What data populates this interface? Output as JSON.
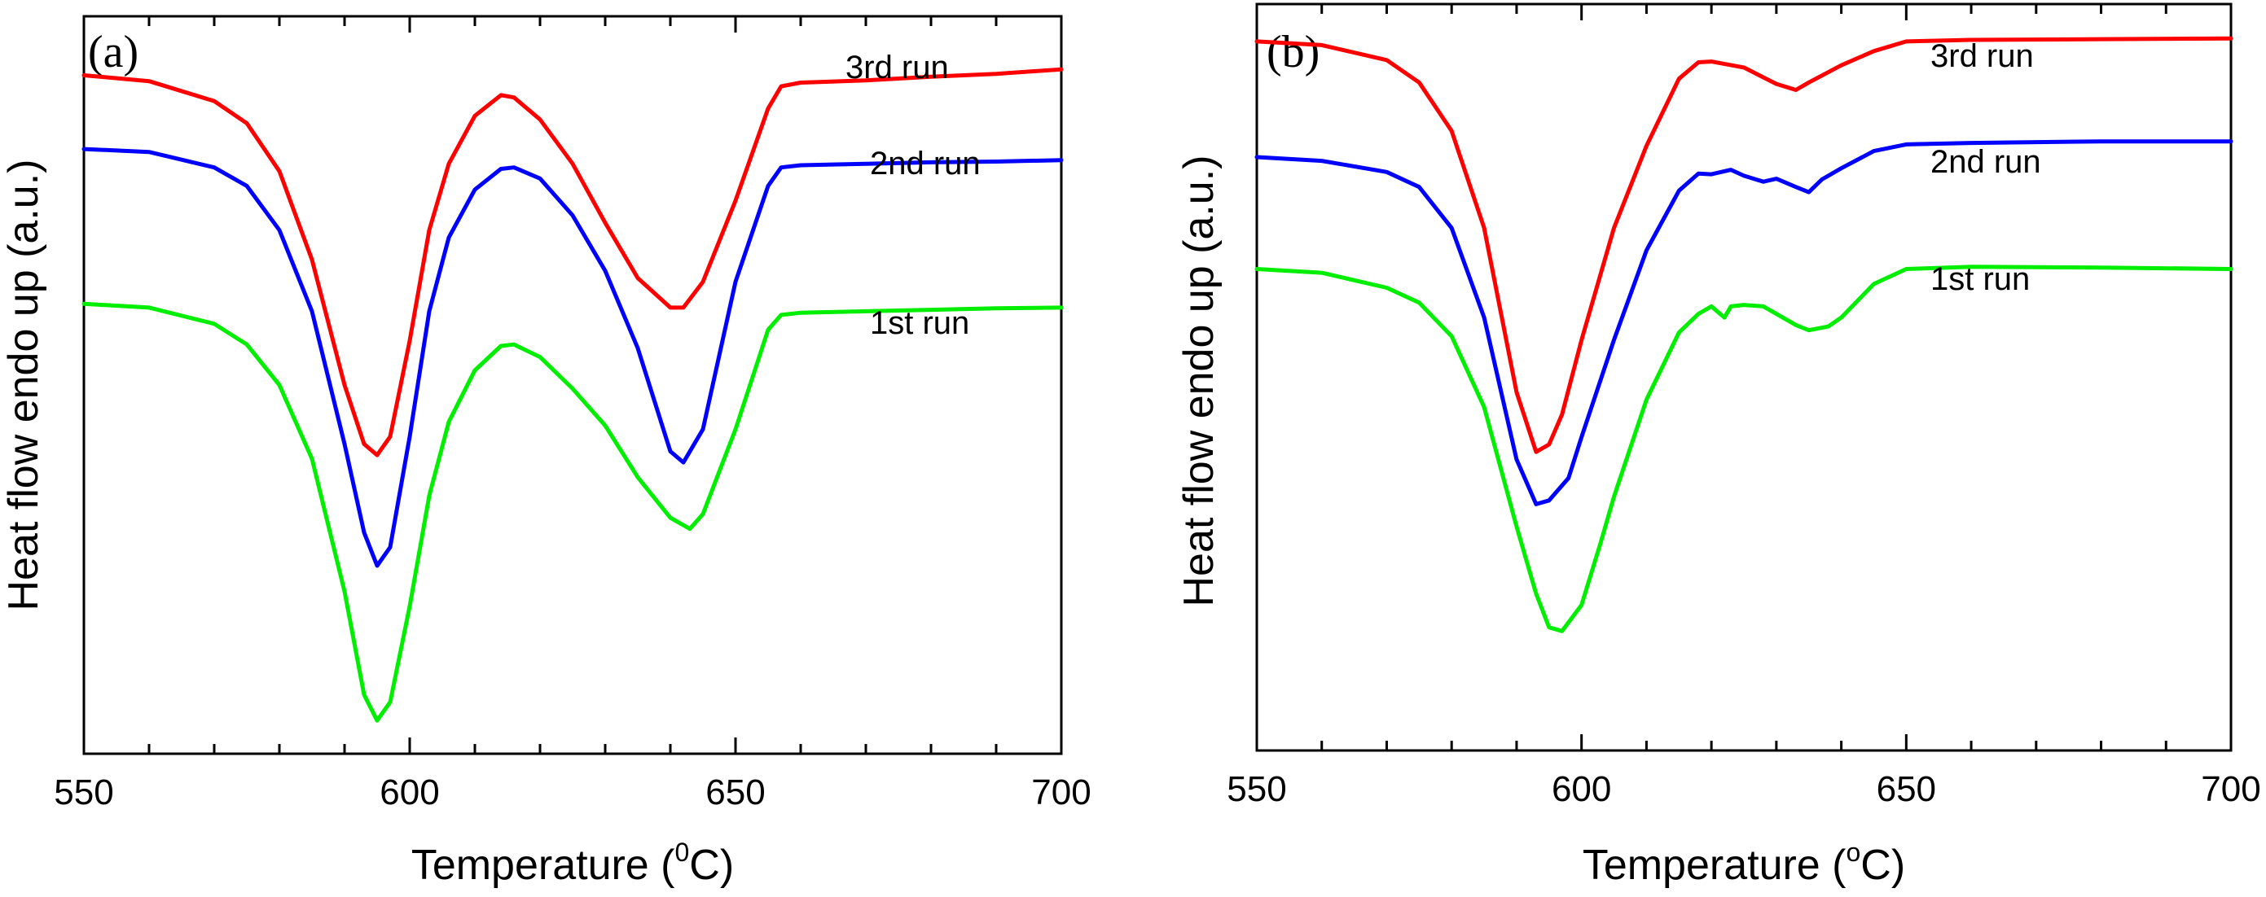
{
  "chart_data": [
    {
      "type": "line",
      "panel_label": "(a)",
      "xlabel": "Temperature (",
      "xlabel_sup": "0",
      "xlabel_unit": "C)",
      "ylabel": "Heat flow endo up (a.u.)",
      "xlim": [
        550,
        700
      ],
      "ylim": [
        0,
        100
      ],
      "xticks": [
        550,
        600,
        650,
        700
      ],
      "xtick_labels": [
        "550",
        "600",
        "650",
        "700"
      ],
      "yticks_shown": false,
      "series": [
        {
          "name": "3rd run",
          "color": "#ff0000",
          "x": [
            550,
            560,
            570,
            575,
            580,
            585,
            590,
            593,
            595,
            597,
            600,
            603,
            606,
            610,
            614,
            616,
            620,
            625,
            630,
            635,
            640,
            642,
            645,
            650,
            655,
            657,
            660,
            670,
            680,
            690,
            700
          ],
          "y": [
            92,
            91.2,
            88.5,
            85.5,
            79,
            67,
            50,
            42,
            40.5,
            43,
            56,
            71,
            80,
            86.5,
            89.3,
            89,
            86,
            80,
            72,
            64.5,
            60.5,
            60.5,
            64,
            75,
            87.5,
            90.5,
            91,
            91.3,
            91.8,
            92.2,
            92.8
          ]
        },
        {
          "name": "2nd run",
          "color": "#0000ff",
          "x": [
            550,
            560,
            570,
            575,
            580,
            585,
            590,
            593,
            595,
            597,
            600,
            603,
            606,
            610,
            614,
            616,
            620,
            625,
            630,
            635,
            640,
            642,
            645,
            650,
            655,
            657,
            660,
            670,
            680,
            690,
            700
          ],
          "y": [
            82,
            81.6,
            79.5,
            77,
            71,
            60,
            42,
            30,
            25.5,
            28,
            43,
            60,
            70,
            76.5,
            79.3,
            79.5,
            78,
            73,
            65.5,
            55,
            41,
            39.5,
            44,
            64,
            77,
            79.5,
            79.8,
            80,
            80.2,
            80.3,
            80.5
          ]
        },
        {
          "name": "1st run",
          "color": "#00ee00",
          "x": [
            550,
            560,
            570,
            575,
            580,
            585,
            590,
            593,
            595,
            597,
            600,
            603,
            606,
            610,
            614,
            616,
            620,
            625,
            630,
            635,
            640,
            643,
            645,
            650,
            655,
            657,
            660,
            670,
            680,
            690,
            700
          ],
          "y": [
            61,
            60.5,
            58.3,
            55.5,
            50,
            40,
            22,
            8,
            4.5,
            7,
            20,
            35,
            45,
            52,
            55.3,
            55.5,
            53.8,
            49.5,
            44.5,
            37.5,
            32,
            30.5,
            32.5,
            44,
            57.5,
            59.5,
            59.8,
            60,
            60.2,
            60.4,
            60.5
          ]
        }
      ]
    },
    {
      "type": "line",
      "panel_label": "(b)",
      "xlabel": "Temperature (",
      "xlabel_sup": "o",
      "xlabel_unit": "C)",
      "ylabel": "Heat flow endo up (a.u.)",
      "xlim": [
        550,
        700
      ],
      "ylim": [
        0,
        100
      ],
      "xticks": [
        550,
        600,
        650,
        700
      ],
      "xtick_labels": [
        "550",
        "600",
        "650",
        "700"
      ],
      "yticks_shown": false,
      "series": [
        {
          "name": "3rd run",
          "color": "#ff0000",
          "x": [
            550,
            560,
            570,
            575,
            580,
            585,
            590,
            593,
            595,
            597,
            600,
            605,
            610,
            615,
            618,
            620,
            625,
            630,
            633,
            635,
            640,
            645,
            650,
            660,
            680,
            700
          ],
          "y": [
            95,
            94.5,
            92.5,
            89.5,
            83,
            70,
            48,
            40,
            41,
            45,
            55,
            70,
            81,
            90,
            92.2,
            92.3,
            91.5,
            89.3,
            88.5,
            89.5,
            91.8,
            93.7,
            95,
            95.2,
            95.3,
            95.4
          ]
        },
        {
          "name": "2nd run",
          "color": "#0000ff",
          "x": [
            550,
            560,
            570,
            575,
            580,
            585,
            590,
            593,
            595,
            598,
            600,
            605,
            610,
            615,
            618,
            620,
            623,
            625,
            628,
            630,
            633,
            635,
            637,
            640,
            645,
            650,
            660,
            680,
            700
          ],
          "y": [
            79.5,
            79,
            77.5,
            75.5,
            70,
            58,
            39,
            33,
            33.5,
            36.5,
            42,
            55,
            67,
            75,
            77.3,
            77.2,
            77.8,
            77,
            76.2,
            76.6,
            75.5,
            74.8,
            76.5,
            78,
            80.3,
            81.2,
            81.4,
            81.6,
            81.6
          ]
        },
        {
          "name": "1st run",
          "color": "#00ee00",
          "x": [
            550,
            560,
            570,
            575,
            580,
            585,
            590,
            593,
            595,
            597,
            600,
            603,
            605,
            610,
            615,
            618,
            620,
            622,
            623,
            625,
            628,
            630,
            633,
            635,
            638,
            640,
            645,
            650,
            660,
            680,
            700
          ],
          "y": [
            64.5,
            64,
            62,
            60,
            55.5,
            46,
            30,
            21,
            16.5,
            16,
            19.5,
            28,
            34,
            47,
            56,
            58.5,
            59.5,
            58,
            59.5,
            59.7,
            59.5,
            58.5,
            57,
            56.3,
            56.8,
            58,
            62.5,
            64.5,
            64.8,
            64.7,
            64.5
          ]
        }
      ]
    }
  ]
}
